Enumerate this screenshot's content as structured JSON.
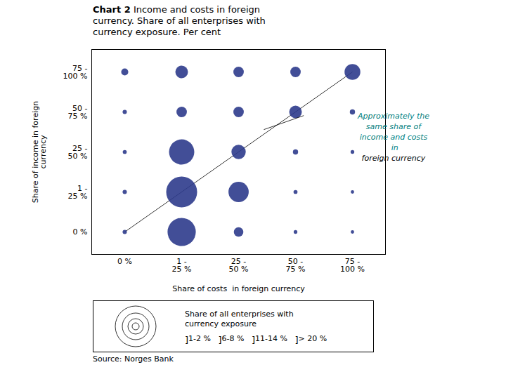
{
  "chart_data": {
    "type": "scatter",
    "title": "Chart 2",
    "subtitle": " Income and costs in foreign\ncurrency. Share of all enterprises with\ncurrency exposure. Per cent",
    "xlabel": "Share of costs  in foreign currency",
    "ylabel": "Share of income in foreign\ncurrency",
    "x_categories": [
      "0 %",
      "1 -\n25 %",
      "25 -\n50 %",
      "50 -\n75 %",
      "75 -\n100 %"
    ],
    "y_categories": [
      "0 %",
      "1 -\n25 %",
      "25 -\n50 %",
      "50 -\n75 %",
      "75 -\n100 %"
    ],
    "x": [
      "0 %",
      "1 -\n25 %",
      "25 -\n50 %",
      "50 -\n75 %",
      "75 -\n100 %",
      "0 %",
      "1 -\n25 %",
      "25 -\n50 %",
      "50 -\n75 %",
      "75 -\n100 %",
      "0 %",
      "1 -\n25 %",
      "25 -\n50 %",
      "50 -\n75 %",
      "75 -\n100 %",
      "0 %",
      "1 -\n25 %",
      "25 -\n50 %",
      "50 -\n75 %",
      "75 -\n100 %",
      "0 %",
      "1 -\n25 %",
      "25 -\n50 %",
      "50 -\n75 %",
      "75 -\n100 %"
    ],
    "y": [
      "75 -\n100 %",
      "75 -\n100 %",
      "75 -\n100 %",
      "75 -\n100 %",
      "75 -\n100 %",
      "50 -\n75 %",
      "50 -\n75 %",
      "50 -\n75 %",
      "50 -\n75 %",
      "50 -\n75 %",
      "25 -\n50 %",
      "25 -\n50 %",
      "25 -\n50 %",
      "25 -\n50 %",
      "25 -\n50 %",
      "1 -\n25 %",
      "1 -\n25 %",
      "1 -\n25 %",
      "1 -\n25 %",
      "1 -\n25 %",
      "0 %",
      "0 %",
      "0 %",
      "0 %",
      "0 %"
    ],
    "sizes": [
      220,
      700,
      480,
      480,
      1100,
      80,
      480,
      480,
      700,
      120,
      70,
      2800,
      900,
      120,
      60,
      80,
      4200,
      1800,
      70,
      50,
      80,
      3500,
      400,
      60,
      50
    ],
    "color": "#2e3b8c",
    "grid": false,
    "annotations": [
      {
        "text": "Approximately the\nsame share of\nincome and costs\n in",
        "color": "#008080"
      },
      {
        "text": "foreign currency",
        "color": "#000000"
      }
    ],
    "size_legend": {
      "title": "Share of all enterprises with\ncurrency exposure",
      "labels": [
        "1-2 %",
        "6-8 %",
        "11-14 %",
        "> 20 %"
      ],
      "separators": [
        "]",
        "]",
        "]",
        "]"
      ]
    },
    "source": "Source: Norges Bank"
  }
}
